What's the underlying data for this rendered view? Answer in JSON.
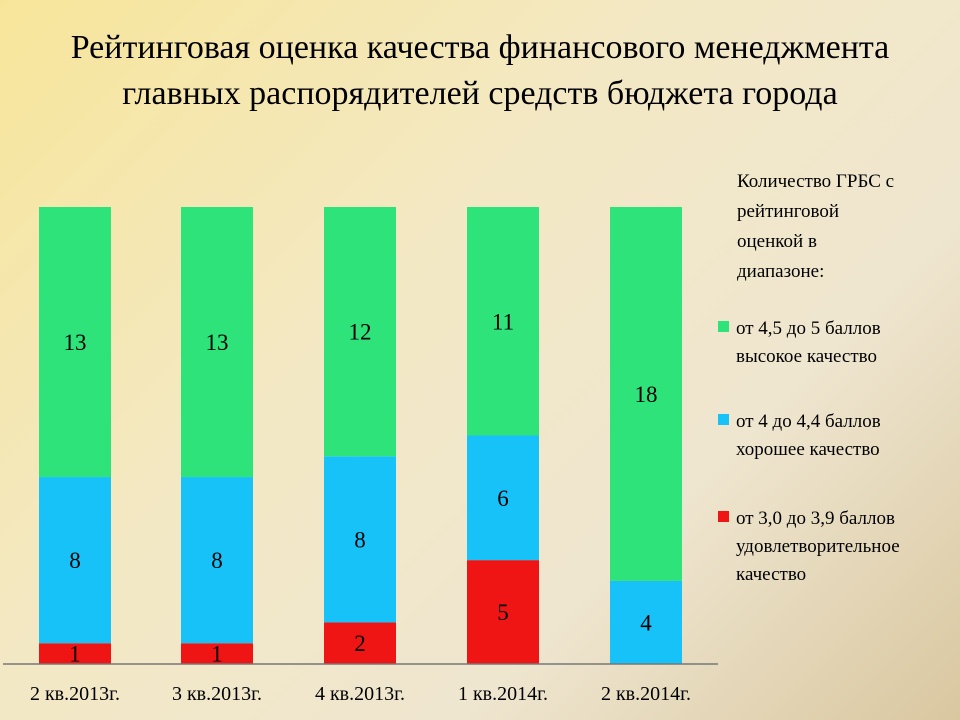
{
  "chart_data": {
    "type": "bar",
    "stacked": true,
    "title": [
      "Рейтинговая оценка качества финансового менеджмента",
      "главных распорядителей средств бюджета города"
    ],
    "categories": [
      "2 кв.2013г.",
      "3 кв.2013г.",
      "4 кв.2013г.",
      "1 кв.2014г.",
      "2 кв.2014г."
    ],
    "series": [
      {
        "name": [
          "от 3,0 до 3,9 баллов",
          "удовлетворительное",
          "качество"
        ],
        "color": "#f01515",
        "values": [
          1,
          1,
          2,
          5,
          0
        ]
      },
      {
        "name": [
          "от 4 до 4,4 баллов",
          "хорошее качество"
        ],
        "color": "#16c2f8",
        "values": [
          8,
          8,
          8,
          6,
          4
        ]
      },
      {
        "name": [
          "от 4,5 до 5 баллов",
          "высокое качество"
        ],
        "color": "#2ee37a",
        "values": [
          13,
          13,
          12,
          11,
          18
        ]
      }
    ],
    "legend_title": [
      "Количество ГРБС с",
      "рейтинговой",
      "оценкой в",
      "диапазоне:"
    ],
    "legend_position": "right",
    "ylim": [
      0,
      22
    ],
    "grid": false,
    "xlabel": "",
    "ylabel": ""
  }
}
